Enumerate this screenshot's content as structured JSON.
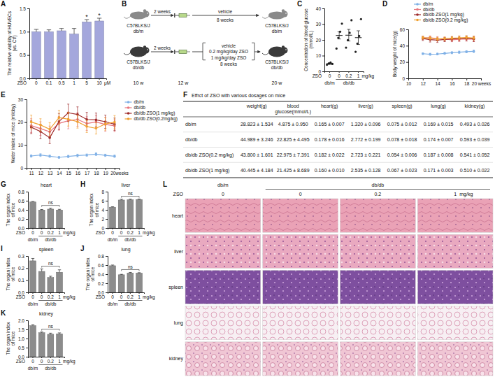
{
  "chart_data": [
    {
      "panel": "A",
      "type": "bar",
      "y_label": "The relative viability of HUVECs (vs. Ctr)",
      "x_label": "ZSO",
      "x_unit": "μM",
      "categories": [
        "0",
        "0.1",
        "0.5",
        "1",
        "5",
        "10"
      ],
      "values": [
        1.0,
        1.0,
        1.02,
        0.95,
        1.21,
        1.23
      ],
      "errors": [
        0.05,
        0.04,
        0.05,
        0.12,
        0.05,
        0.06
      ],
      "color": "#a4a7dc",
      "ylim": [
        0,
        1.5
      ],
      "yticks": [
        {
          "value": 0,
          "label": "0.0"
        },
        0.5,
        {
          "value": 1,
          "label": "1.0"
        },
        1.5
      ],
      "annotations": [
        {
          "text": "*",
          "category": "5"
        },
        {
          "text": "*",
          "category": "10"
        }
      ]
    },
    {
      "panel": "C",
      "type": "scatter",
      "marker": "circle",
      "y_label": "Concentration of blood glucose (mmol/L)",
      "x_label": "ZSO",
      "x_unit": "mg/kg",
      "categories": [
        "0",
        "0",
        "0.2",
        "1"
      ],
      "groups": [
        "db/m",
        "db/db",
        "db/db",
        "db/db"
      ],
      "points": [
        [
          4.2,
          5.0,
          5.6,
          4.7
        ],
        [
          14.5,
          21.3,
          25.2,
          30.3
        ],
        [
          15.1,
          19.8,
          24.5,
          32.5
        ],
        [
          12.4,
          17.6,
          22.5,
          33.2
        ]
      ],
      "values": [
        4.875,
        22.825,
        22.975,
        21.425
      ],
      "errors": [
        0.475,
        2.25,
        3.7,
        4.34
      ],
      "color": "#222222",
      "ylim": [
        0,
        40
      ],
      "yticks": [
        0,
        10,
        20,
        30,
        40
      ]
    },
    {
      "panel": "D",
      "type": "line",
      "marker": "circle",
      "y_label": "Body weight of mice(g)",
      "x": [
        12,
        13,
        14,
        15,
        16,
        17,
        18,
        19
      ],
      "xlim": [
        10,
        20
      ],
      "xticks": [
        10,
        12,
        14,
        16,
        18,
        {
          "value": 20,
          "label": "20 weeks"
        }
      ],
      "ylim": [
        0,
        60
      ],
      "yticks": [
        0,
        20,
        40,
        60
      ],
      "legend": "top",
      "series": [
        {
          "name": "db/m",
          "color": "#7fb0e6",
          "values": [
            30.2,
            29.5,
            29.8,
            30.6,
            31.4,
            32.0,
            32.6,
            33.1
          ],
          "errors": [
            1.0,
            1.2,
            1.1,
            1.3,
            1.2,
            1.4,
            1.3,
            1.5
          ]
        },
        {
          "name": "db/db",
          "color": "#e8767e",
          "values": [
            49.5,
            49.8,
            48.6,
            48.0,
            47.2,
            47.8,
            48.4,
            48.1
          ],
          "errors": [
            2.0,
            2.2,
            2.5,
            2.4,
            2.3,
            2.6,
            2.8,
            3.0
          ]
        },
        {
          "name": "db/db ZSO(1 mg/kg)",
          "color": "#9e2a2b",
          "values": [
            48.8,
            47.5,
            46.8,
            47.6,
            48.2,
            48.8,
            49.0,
            48.3
          ],
          "errors": [
            2.5,
            3.0,
            2.8,
            2.6,
            2.7,
            3.0,
            2.9,
            3.2
          ]
        },
        {
          "name": "db/db ZSO(0.2 mg/kg)",
          "color": "#f0a030",
          "values": [
            49.8,
            49.2,
            48.2,
            48.7,
            49.3,
            49.6,
            50.1,
            49.4
          ],
          "errors": [
            1.8,
            2.0,
            2.2,
            2.0,
            2.1,
            2.3,
            2.2,
            2.4
          ]
        }
      ]
    },
    {
      "panel": "E",
      "type": "line",
      "marker": "circle",
      "y_label": "Water intake of mice (ml/day)",
      "categories": [
        "11",
        "12",
        "13",
        "14",
        "15",
        "16",
        "17",
        "18",
        "19",
        "20weeks"
      ],
      "ylim": [
        0,
        30
      ],
      "yticks": [
        0,
        10,
        20,
        30
      ],
      "legend": "right",
      "series": [
        {
          "name": "db/m",
          "color": "#7fb0e6",
          "values": [
            5.2,
            5.6,
            5.1,
            4.6,
            5.0,
            5.4,
            5.6,
            6.0,
            5.5,
            5.1
          ],
          "errors": [
            0.5,
            0.6,
            0.5,
            0.4,
            0.5,
            0.6,
            0.5,
            0.6,
            0.5,
            0.5
          ]
        },
        {
          "name": "db/db",
          "color": "#e8767e",
          "values": [
            18.5,
            17.2,
            15.8,
            19.5,
            20.6,
            21.2,
            19.4,
            20.1,
            19.0,
            18.4
          ],
          "errors": [
            3.0,
            3.0,
            2.5,
            3.0,
            3.5,
            3.0,
            3.0,
            2.8,
            3.0,
            2.6
          ]
        },
        {
          "name": "db/db ZSO(1 mg/kg)",
          "color": "#9e2a2b",
          "values": [
            17.8,
            15.9,
            13.2,
            20.3,
            24.1,
            23.4,
            21.2,
            21.0,
            20.2,
            19.1
          ],
          "errors": [
            2.8,
            3.2,
            2.6,
            3.5,
            3.8,
            3.3,
            3.1,
            3.0,
            2.9,
            2.7
          ]
        },
        {
          "name": "db/db ZSO(0.2mg/kg)",
          "color": "#f0a030",
          "values": [
            20.1,
            18.8,
            16.9,
            22.0,
            21.3,
            20.2,
            18.1,
            17.3,
            19.2,
            20.0
          ],
          "errors": [
            3.0,
            2.7,
            2.9,
            3.2,
            3.0,
            2.8,
            2.6,
            2.5,
            2.7,
            2.9
          ]
        }
      ]
    },
    {
      "panel": "G",
      "type": "bar",
      "title": "heart",
      "y_label": "The organ index of mice",
      "x_label": "ZSO",
      "x_unit": "mg/kg",
      "categories": [
        "0",
        "0",
        "0.2",
        "1"
      ],
      "groups": [
        "db/m",
        "db/db",
        "db/db",
        "db/db"
      ],
      "values": [
        0.573,
        0.396,
        0.416,
        0.396
      ],
      "errors": [
        0.01,
        0.012,
        0.02,
        0.015
      ],
      "color": "#8c8c8c",
      "ylim": [
        0,
        0.8
      ],
      "yticks": [
        {
          "value": 0,
          "label": "0.0"
        },
        0.2,
        0.4,
        0.6,
        0.8
      ],
      "annotations": [
        {
          "text": "ns",
          "group": "db/db"
        }
      ]
    },
    {
      "panel": "H",
      "type": "bar",
      "title": "liver",
      "y_label": "The organ index of mice",
      "x_label": "ZSO",
      "x_unit": "mg/kg",
      "categories": [
        "0",
        "0",
        "0.2",
        "1"
      ],
      "groups": [
        "db/m",
        "db/db",
        "db/db",
        "db/db"
      ],
      "values": [
        4.58,
        6.16,
        6.22,
        6.27
      ],
      "errors": [
        0.1,
        0.15,
        0.12,
        0.1
      ],
      "color": "#8c8c8c",
      "ylim": [
        0,
        8
      ],
      "yticks": [
        0,
        2,
        4,
        6,
        8
      ],
      "annotations": [
        {
          "text": "ns",
          "group": "db/db"
        }
      ]
    },
    {
      "panel": "I",
      "type": "bar",
      "title": "spleen",
      "y_label": "The organ index of mice",
      "x_label": "ZSO",
      "x_unit": "mg/kg",
      "categories": [
        "0",
        "0",
        "0.2",
        "1"
      ],
      "groups": [
        "db/m",
        "db/db",
        "db/db",
        "db/db"
      ],
      "values": [
        0.26,
        0.173,
        0.123,
        0.166
      ],
      "errors": [
        0.02,
        0.02,
        0.01,
        0.02
      ],
      "color": "#8c8c8c",
      "ylim": [
        0,
        0.3
      ],
      "yticks": [
        {
          "value": 0,
          "label": "0.0"
        },
        0.1,
        0.2,
        0.3
      ],
      "annotations": [
        {
          "text": "ns",
          "group": "db/db"
        }
      ]
    },
    {
      "panel": "J",
      "type": "bar",
      "title": "lung",
      "y_label": "The organ index of mice",
      "x_label": "ZSO",
      "x_unit": "mg/kg",
      "categories": [
        "0",
        "0",
        "0.2",
        "1"
      ],
      "groups": [
        "db/m",
        "db/db",
        "db/db",
        "db/db"
      ],
      "values": [
        0.586,
        0.387,
        0.427,
        0.423
      ],
      "errors": [
        0.015,
        0.01,
        0.012,
        0.01
      ],
      "color": "#8c8c8c",
      "ylim": [
        0,
        0.8
      ],
      "yticks": [
        {
          "value": 0,
          "label": "0.0"
        },
        0.2,
        0.4,
        0.6,
        0.8
      ],
      "annotations": [
        {
          "text": "ns",
          "group": "db/db"
        }
      ]
    },
    {
      "panel": "K",
      "type": "bar",
      "title": "kidney",
      "y_label": "The organ index of mice",
      "x_label": "ZSO",
      "x_unit": "mg/kg",
      "categories": [
        "0",
        "0",
        "0.2",
        "1"
      ],
      "groups": [
        "db/m",
        "db/db",
        "db/db",
        "db/db"
      ],
      "values": [
        1.71,
        1.32,
        1.235,
        1.26
      ],
      "errors": [
        0.05,
        0.04,
        0.06,
        0.05
      ],
      "color": "#8c8c8c",
      "ylim": [
        0,
        2
      ],
      "yticks": [
        {
          "value": 0,
          "label": "0.0"
        },
        0.5,
        {
          "value": 1,
          "label": "1.0"
        },
        1.5,
        {
          "value": 2,
          "label": "2.0"
        }
      ],
      "annotations": [
        {
          "text": "ns",
          "group": "db/db"
        }
      ]
    }
  ],
  "diagram": {
    "panel": "B",
    "rows": [
      {
        "start": {
          "strain": "C57BLKS/J",
          "genotype": "db/m"
        },
        "acclimation": "2 weeks",
        "treatments": [
          "vehicle"
        ],
        "duration": "8 weeks",
        "end": {
          "strain": "C57BLKS/J",
          "genotype": "db/m"
        }
      },
      {
        "start": {
          "strain": "C57BLKS/J",
          "genotype": "db/db"
        },
        "acclimation": "2 weeks",
        "treatments": [
          "vehicle",
          "0.2 mg/kg/day ZSO",
          "1 mg/kg/day ZSO"
        ],
        "duration": "8 weeks",
        "end": {
          "strain": "C57BLKS/J",
          "genotype": "db/db"
        }
      }
    ],
    "timeline": [
      "10 w",
      "12 w",
      "20 w"
    ]
  },
  "table": {
    "panel": "F",
    "title": "Effrct of ZSO with various dosages on mice",
    "columns": [
      "weight(g)",
      "blood glucose(mmol/L)",
      "heart(g)",
      "liver(g)",
      "spleen(g)",
      "lung(g)",
      "kidney(g)"
    ],
    "rows": [
      {
        "label": "db/m",
        "cells": [
          "28.823 ± 1.534",
          "4.875 ± 0.950",
          "0.165 ± 0.007",
          "1.320 ± 0.096",
          "0.075 ± 0.012",
          "0.169 ± 0.015",
          "0.493 ± 0.026"
        ]
      },
      {
        "label": "db/db",
        "cells": [
          "44.989 ± 3.246",
          "22.825 ± 4.495",
          "0.178 ± 0.016",
          "2.772 ± 0.199",
          "0.078 ± 0.018",
          "0.174 ± 0.007",
          "0.593 ± 0.039"
        ]
      },
      {
        "label": "db/db ZSO(0.2 mg/kg)",
        "cells": [
          "43.800 ± 1.601",
          "22.975 ± 7.391",
          "0.182 ± 0.022",
          "2.723 ± 0.221",
          "0.054 ± 0.006",
          "0.187 ± 0.008",
          "0.541 ± 0.052"
        ]
      },
      {
        "label": "db/db ZSO(1 mg/kg)",
        "cells": [
          "40.445 ± 4.184",
          "21.425 ± 8.689",
          "0.160 ± 0.010",
          "2.535 ± 0.128",
          "0.067 ± 0.023",
          "0.171 ± 0.003",
          "0.510 ± 0.022"
        ]
      }
    ]
  },
  "histology": {
    "panel": "L",
    "x_label": "ZSO",
    "doses": [
      "0",
      "0",
      "0.2",
      "1"
    ],
    "unit": "mg/kg",
    "groups": [
      "db/m",
      "db/db",
      "db/db",
      "db/db"
    ],
    "organs": [
      "heart",
      "liver",
      "spleen",
      "lung",
      "kidney"
    ]
  }
}
